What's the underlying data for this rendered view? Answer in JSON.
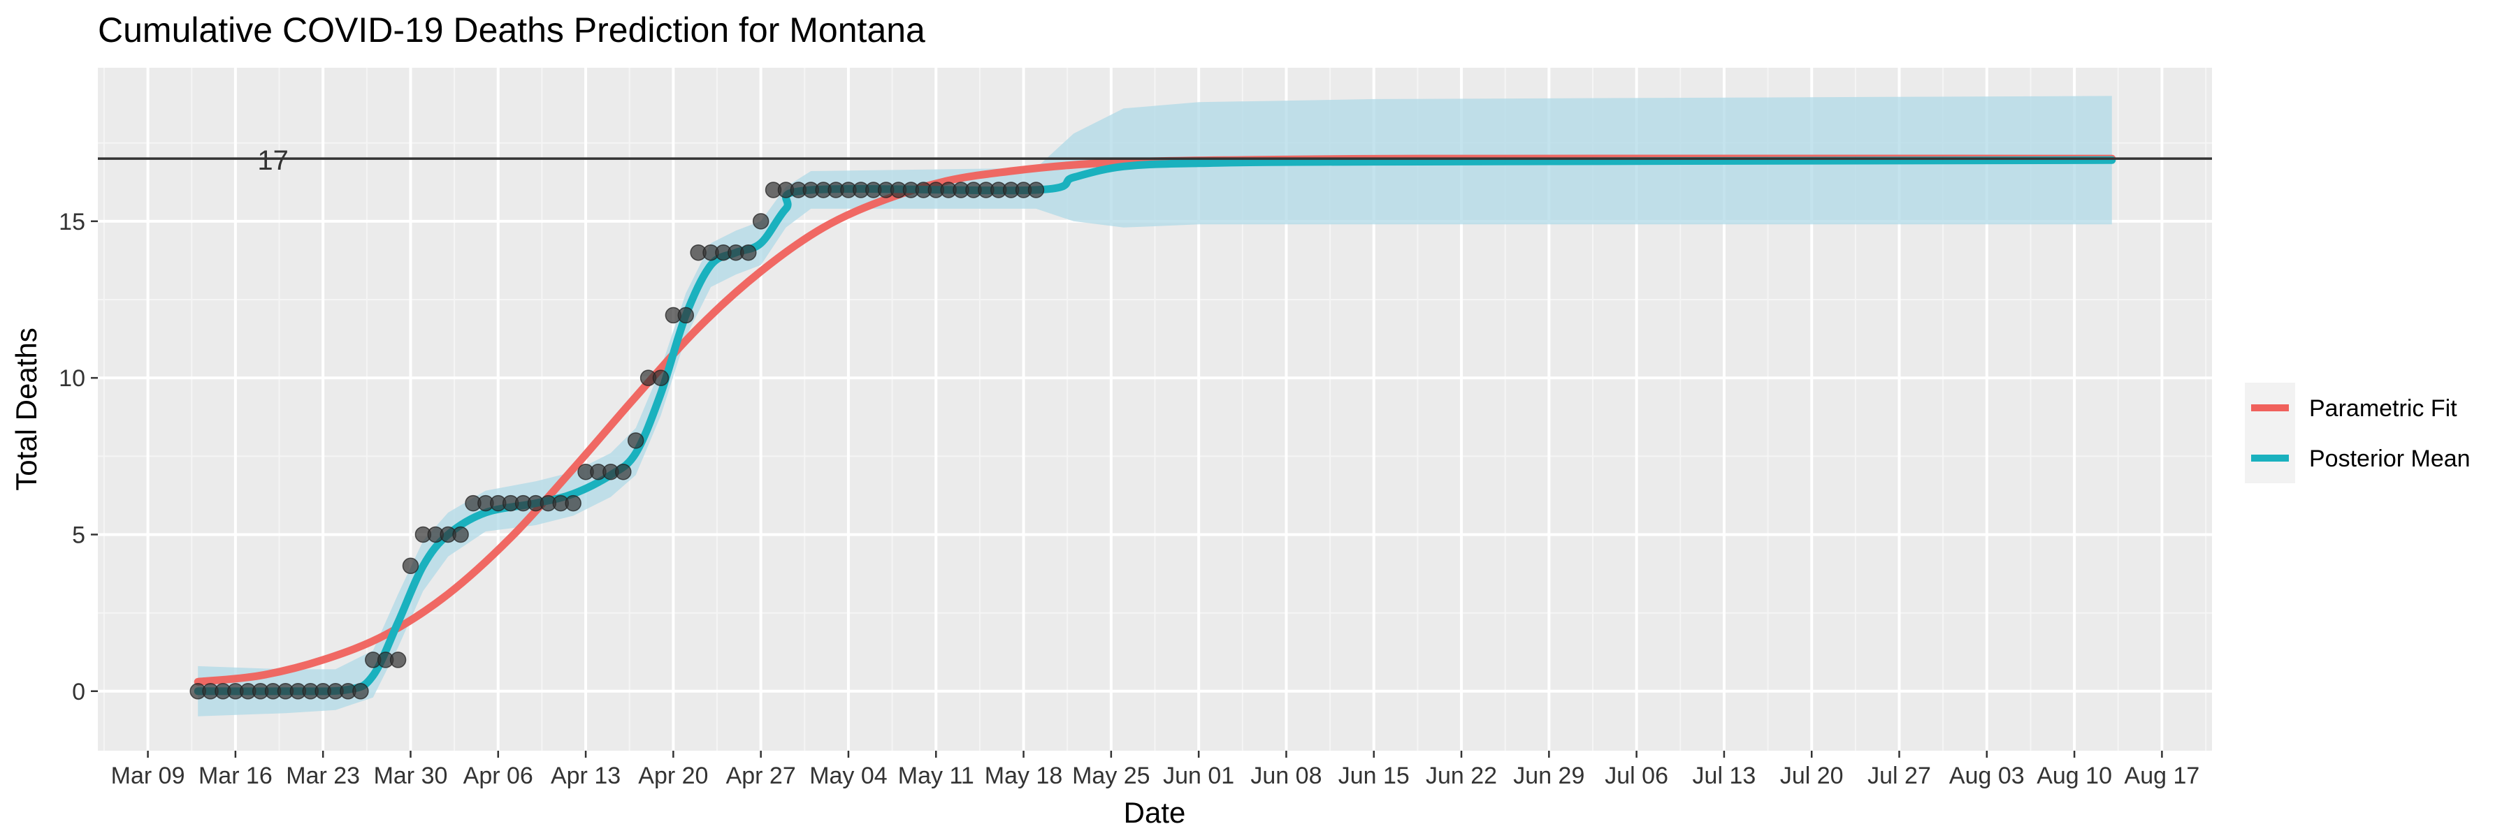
{
  "chart_data": {
    "type": "line",
    "title": "Cumulative COVID-19 Deaths Prediction for Montana",
    "xlabel": "Date",
    "ylabel": "Total Deaths",
    "x_axis": {
      "type": "date",
      "range": [
        "2020-03-05",
        "2020-08-21"
      ],
      "ticks": [
        {
          "date": "2020-03-09",
          "label": "Mar 09"
        },
        {
          "date": "2020-03-16",
          "label": "Mar 16"
        },
        {
          "date": "2020-03-23",
          "label": "Mar 23"
        },
        {
          "date": "2020-03-30",
          "label": "Mar 30"
        },
        {
          "date": "2020-04-06",
          "label": "Apr 06"
        },
        {
          "date": "2020-04-13",
          "label": "Apr 13"
        },
        {
          "date": "2020-04-20",
          "label": "Apr 20"
        },
        {
          "date": "2020-04-27",
          "label": "Apr 27"
        },
        {
          "date": "2020-05-04",
          "label": "May 04"
        },
        {
          "date": "2020-05-11",
          "label": "May 11"
        },
        {
          "date": "2020-05-18",
          "label": "May 18"
        },
        {
          "date": "2020-05-25",
          "label": "May 25"
        },
        {
          "date": "2020-06-01",
          "label": "Jun 01"
        },
        {
          "date": "2020-06-08",
          "label": "Jun 08"
        },
        {
          "date": "2020-06-15",
          "label": "Jun 15"
        },
        {
          "date": "2020-06-22",
          "label": "Jun 22"
        },
        {
          "date": "2020-06-29",
          "label": "Jun 29"
        },
        {
          "date": "2020-07-06",
          "label": "Jul 06"
        },
        {
          "date": "2020-07-13",
          "label": "Jul 13"
        },
        {
          "date": "2020-07-20",
          "label": "Jul 20"
        },
        {
          "date": "2020-07-27",
          "label": "Jul 27"
        },
        {
          "date": "2020-08-03",
          "label": "Aug 03"
        },
        {
          "date": "2020-08-10",
          "label": "Aug 10"
        },
        {
          "date": "2020-08-17",
          "label": "Aug 17"
        }
      ]
    },
    "y_axis": {
      "range": [
        -1.9,
        19.9
      ],
      "ticks": [
        0,
        5,
        10,
        15
      ]
    },
    "grid": true,
    "legend": {
      "position": "right",
      "entries": [
        {
          "label": "Parametric Fit",
          "color": "#f0615c"
        },
        {
          "label": "Posterior Mean",
          "color": "#1ab1be"
        }
      ]
    },
    "reference_line": {
      "y": 17,
      "label": "17",
      "label_date": "2020-03-19"
    },
    "observed": {
      "start_date": "2020-03-13",
      "values": [
        0,
        0,
        0,
        0,
        0,
        0,
        0,
        0,
        0,
        0,
        0,
        0,
        0,
        0,
        1,
        1,
        1,
        4,
        5,
        5,
        5,
        5,
        6,
        6,
        6,
        6,
        6,
        6,
        6,
        6,
        6,
        7,
        7,
        7,
        7,
        8,
        10,
        10,
        12,
        12,
        14,
        14,
        14,
        14,
        14,
        15,
        16,
        16,
        16,
        16,
        16,
        16,
        16,
        16,
        16,
        16,
        16,
        16,
        16,
        16,
        16,
        16,
        16,
        16,
        16,
        16,
        16,
        16
      ]
    },
    "series": [
      {
        "name": "Parametric Fit",
        "color": "#f0615c",
        "points": [
          [
            "2020-03-13",
            0.3
          ],
          [
            "2020-03-18",
            0.5
          ],
          [
            "2020-03-23",
            1.0
          ],
          [
            "2020-03-28",
            1.8
          ],
          [
            "2020-04-02",
            3.1
          ],
          [
            "2020-04-07",
            4.9
          ],
          [
            "2020-04-12",
            7.1
          ],
          [
            "2020-04-17",
            9.4
          ],
          [
            "2020-04-22",
            11.6
          ],
          [
            "2020-04-27",
            13.4
          ],
          [
            "2020-05-02",
            14.8
          ],
          [
            "2020-05-07",
            15.7
          ],
          [
            "2020-05-12",
            16.3
          ],
          [
            "2020-05-17",
            16.6
          ],
          [
            "2020-05-22",
            16.8
          ],
          [
            "2020-05-27",
            16.9
          ],
          [
            "2020-06-03",
            16.95
          ],
          [
            "2020-06-20",
            17.0
          ],
          [
            "2020-08-13",
            17.0
          ]
        ]
      },
      {
        "name": "Posterior Mean",
        "color": "#1ab1be",
        "points": [
          [
            "2020-03-13",
            0
          ],
          [
            "2020-03-20",
            0
          ],
          [
            "2020-03-25",
            0.05
          ],
          [
            "2020-03-27",
            0.5
          ],
          [
            "2020-03-29",
            2.2
          ],
          [
            "2020-03-31",
            4.0
          ],
          [
            "2020-04-02",
            5.0
          ],
          [
            "2020-04-05",
            5.7
          ],
          [
            "2020-04-09",
            6.0
          ],
          [
            "2020-04-12",
            6.3
          ],
          [
            "2020-04-15",
            6.9
          ],
          [
            "2020-04-17",
            7.6
          ],
          [
            "2020-04-19",
            9.5
          ],
          [
            "2020-04-21",
            12.0
          ],
          [
            "2020-04-23",
            13.6
          ],
          [
            "2020-04-25",
            14.0
          ],
          [
            "2020-04-27",
            14.3
          ],
          [
            "2020-04-29",
            15.4
          ],
          [
            "2020-05-01",
            16.0
          ],
          [
            "2020-05-19",
            16.0
          ],
          [
            "2020-05-22",
            16.4
          ],
          [
            "2020-05-26",
            16.75
          ],
          [
            "2020-06-01",
            16.85
          ],
          [
            "2020-06-15",
            16.9
          ],
          [
            "2020-08-13",
            16.95
          ]
        ]
      }
    ],
    "credible_band": {
      "color": "#add8e6",
      "points": [
        [
          "2020-03-13",
          -0.8,
          0.8
        ],
        [
          "2020-03-20",
          -0.7,
          0.7
        ],
        [
          "2020-03-24",
          -0.6,
          0.7
        ],
        [
          "2020-03-27",
          -0.2,
          1.3
        ],
        [
          "2020-03-29",
          1.4,
          3.1
        ],
        [
          "2020-03-31",
          3.2,
          4.8
        ],
        [
          "2020-04-02",
          4.3,
          5.7
        ],
        [
          "2020-04-05",
          5.1,
          6.4
        ],
        [
          "2020-04-09",
          5.3,
          6.7
        ],
        [
          "2020-04-12",
          5.6,
          7.0
        ],
        [
          "2020-04-15",
          6.2,
          7.6
        ],
        [
          "2020-04-17",
          6.9,
          8.4
        ],
        [
          "2020-04-19",
          8.8,
          10.3
        ],
        [
          "2020-04-21",
          11.3,
          12.7
        ],
        [
          "2020-04-23",
          12.9,
          14.3
        ],
        [
          "2020-04-25",
          13.3,
          14.7
        ],
        [
          "2020-04-27",
          13.6,
          15.0
        ],
        [
          "2020-04-29",
          14.8,
          16.1
        ],
        [
          "2020-05-01",
          15.4,
          16.6
        ],
        [
          "2020-05-19",
          15.4,
          16.7
        ],
        [
          "2020-05-22",
          15.0,
          17.8
        ],
        [
          "2020-05-26",
          14.8,
          18.6
        ],
        [
          "2020-06-01",
          14.9,
          18.8
        ],
        [
          "2020-06-15",
          14.9,
          18.9
        ],
        [
          "2020-08-13",
          14.9,
          19.0
        ]
      ]
    }
  }
}
